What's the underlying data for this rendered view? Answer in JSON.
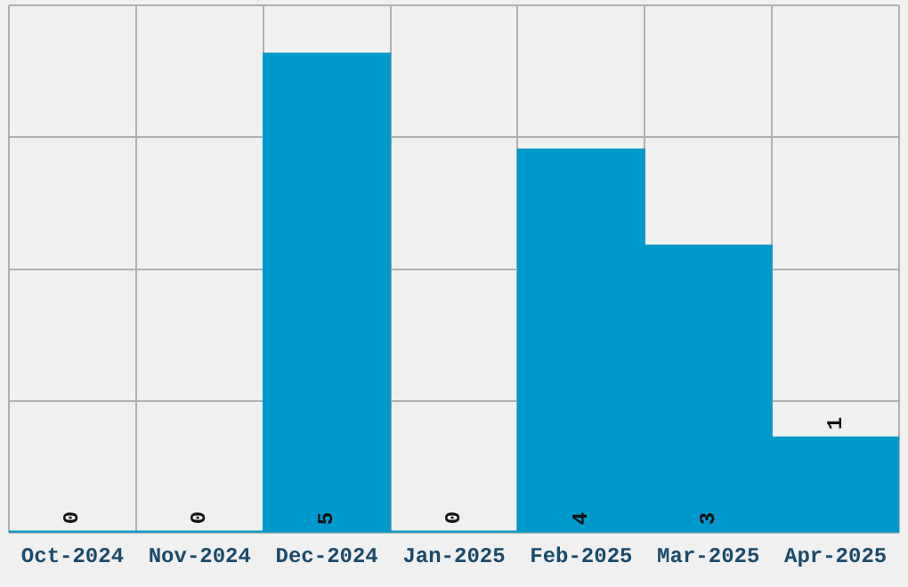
{
  "chart_data": {
    "type": "bar",
    "categories": [
      "Oct-2024",
      "Nov-2024",
      "Dec-2024",
      "Jan-2025",
      "Feb-2025",
      "Mar-2025",
      "Apr-2025"
    ],
    "values": [
      0,
      0,
      5,
      0,
      4,
      3,
      1
    ],
    "color": "#0099cc",
    "ylim": [
      0,
      5.5
    ],
    "yticks": [
      {
        "value": 0,
        "label": null
      },
      {
        "value": 1.375,
        "label": null
      },
      {
        "value": 2.75,
        "label": null
      },
      {
        "value": 4.125,
        "label": null
      },
      {
        "value": 5.5,
        "label": null
      }
    ],
    "grid": true,
    "tick_labels": "x",
    "data_labels": true,
    "legend": false
  }
}
